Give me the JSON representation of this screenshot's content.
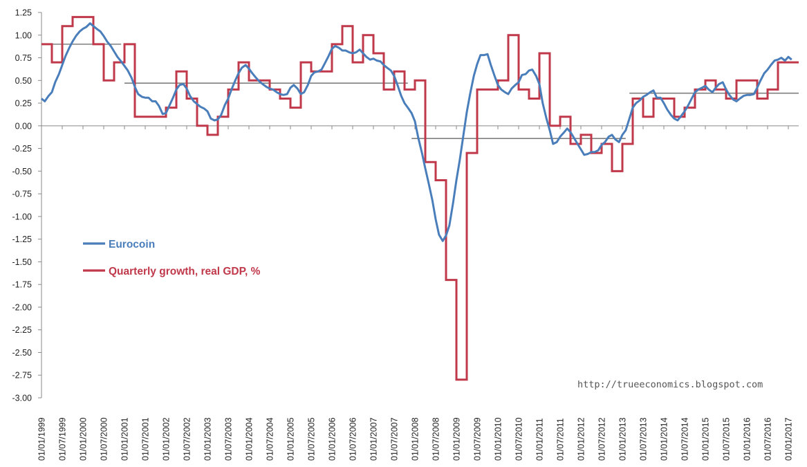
{
  "chart_data": {
    "type": "line",
    "title": "",
    "xlabel": "",
    "ylabel": "",
    "ylim": [
      -3.0,
      1.25
    ],
    "y_ticks": [
      "1.25",
      "1.00",
      "0.75",
      "0.50",
      "0.25",
      "0.00",
      "-0.25",
      "-0.50",
      "-0.75",
      "-1.00",
      "-1.25",
      "-1.50",
      "-1.75",
      "-2.00",
      "-2.25",
      "-2.50",
      "-2.75",
      "-3.00"
    ],
    "x_ticks": [
      "01/01/1999",
      "01/07/1999",
      "01/01/2000",
      "01/07/2000",
      "01/01/2001",
      "01/07/2001",
      "01/01/2002",
      "01/07/2002",
      "01/01/2003",
      "01/07/2003",
      "01/01/2004",
      "01/07/2004",
      "01/01/2005",
      "01/07/2005",
      "01/01/2006",
      "01/07/2006",
      "01/01/2007",
      "01/07/2007",
      "01/01/2008",
      "01/07/2008",
      "01/01/2009",
      "01/07/2009",
      "01/01/2010",
      "01/07/2010",
      "01/01/2011",
      "01/07/2011",
      "01/01/2012",
      "01/07/2012",
      "01/01/2013",
      "01/07/2013",
      "01/01/2014",
      "01/07/2014",
      "01/01/2015",
      "01/07/2015",
      "01/01/2016",
      "01/07/2016",
      "01/01/2017"
    ],
    "x_start": 1999.0,
    "x_end": 2017.25,
    "legend_position": "left-middle",
    "watermark": "http://trueeconomics.blogspot.com",
    "series": [
      {
        "name": "Eurocoin",
        "color": "#4a7ebb",
        "points": [
          [
            1999.0,
            0.3
          ],
          [
            1999.08,
            0.27
          ],
          [
            1999.17,
            0.33
          ],
          [
            1999.25,
            0.37
          ],
          [
            1999.33,
            0.48
          ],
          [
            1999.42,
            0.57
          ],
          [
            1999.5,
            0.67
          ],
          [
            1999.58,
            0.77
          ],
          [
            1999.67,
            0.86
          ],
          [
            1999.75,
            0.93
          ],
          [
            1999.83,
            0.99
          ],
          [
            1999.92,
            1.04
          ],
          [
            2000.0,
            1.07
          ],
          [
            2000.08,
            1.09
          ],
          [
            2000.17,
            1.13
          ],
          [
            2000.25,
            1.1
          ],
          [
            2000.33,
            1.07
          ],
          [
            2000.42,
            1.04
          ],
          [
            2000.5,
            0.99
          ],
          [
            2000.58,
            0.93
          ],
          [
            2000.67,
            0.88
          ],
          [
            2000.75,
            0.82
          ],
          [
            2000.83,
            0.76
          ],
          [
            2000.92,
            0.71
          ],
          [
            2001.0,
            0.66
          ],
          [
            2001.08,
            0.61
          ],
          [
            2001.17,
            0.53
          ],
          [
            2001.25,
            0.43
          ],
          [
            2001.33,
            0.35
          ],
          [
            2001.42,
            0.32
          ],
          [
            2001.5,
            0.31
          ],
          [
            2001.58,
            0.31
          ],
          [
            2001.67,
            0.27
          ],
          [
            2001.75,
            0.27
          ],
          [
            2001.83,
            0.22
          ],
          [
            2001.92,
            0.13
          ],
          [
            2002.0,
            0.14
          ],
          [
            2002.08,
            0.22
          ],
          [
            2002.17,
            0.31
          ],
          [
            2002.25,
            0.4
          ],
          [
            2002.33,
            0.45
          ],
          [
            2002.42,
            0.46
          ],
          [
            2002.5,
            0.41
          ],
          [
            2002.58,
            0.33
          ],
          [
            2002.67,
            0.27
          ],
          [
            2002.75,
            0.24
          ],
          [
            2002.83,
            0.21
          ],
          [
            2002.92,
            0.19
          ],
          [
            2003.0,
            0.16
          ],
          [
            2003.08,
            0.08
          ],
          [
            2003.17,
            0.06
          ],
          [
            2003.25,
            0.07
          ],
          [
            2003.33,
            0.12
          ],
          [
            2003.42,
            0.23
          ],
          [
            2003.5,
            0.3
          ],
          [
            2003.58,
            0.4
          ],
          [
            2003.67,
            0.5
          ],
          [
            2003.75,
            0.58
          ],
          [
            2003.83,
            0.64
          ],
          [
            2003.92,
            0.67
          ],
          [
            2004.0,
            0.63
          ],
          [
            2004.08,
            0.58
          ],
          [
            2004.17,
            0.53
          ],
          [
            2004.25,
            0.49
          ],
          [
            2004.33,
            0.46
          ],
          [
            2004.42,
            0.43
          ],
          [
            2004.5,
            0.41
          ],
          [
            2004.58,
            0.4
          ],
          [
            2004.67,
            0.37
          ],
          [
            2004.75,
            0.35
          ],
          [
            2004.83,
            0.34
          ],
          [
            2004.92,
            0.35
          ],
          [
            2005.0,
            0.42
          ],
          [
            2005.08,
            0.45
          ],
          [
            2005.17,
            0.41
          ],
          [
            2005.25,
            0.35
          ],
          [
            2005.33,
            0.37
          ],
          [
            2005.42,
            0.45
          ],
          [
            2005.5,
            0.55
          ],
          [
            2005.58,
            0.59
          ],
          [
            2005.67,
            0.6
          ],
          [
            2005.75,
            0.62
          ],
          [
            2005.83,
            0.69
          ],
          [
            2005.92,
            0.77
          ],
          [
            2006.0,
            0.85
          ],
          [
            2006.08,
            0.88
          ],
          [
            2006.17,
            0.86
          ],
          [
            2006.25,
            0.83
          ],
          [
            2006.33,
            0.83
          ],
          [
            2006.42,
            0.81
          ],
          [
            2006.5,
            0.8
          ],
          [
            2006.58,
            0.81
          ],
          [
            2006.67,
            0.84
          ],
          [
            2006.75,
            0.8
          ],
          [
            2006.83,
            0.76
          ],
          [
            2006.92,
            0.73
          ],
          [
            2007.0,
            0.74
          ],
          [
            2007.08,
            0.72
          ],
          [
            2007.17,
            0.71
          ],
          [
            2007.25,
            0.67
          ],
          [
            2007.33,
            0.64
          ],
          [
            2007.42,
            0.61
          ],
          [
            2007.5,
            0.55
          ],
          [
            2007.58,
            0.45
          ],
          [
            2007.67,
            0.33
          ],
          [
            2007.75,
            0.25
          ],
          [
            2007.83,
            0.2
          ],
          [
            2007.92,
            0.14
          ],
          [
            2008.0,
            0.05
          ],
          [
            2008.08,
            -0.13
          ],
          [
            2008.17,
            -0.3
          ],
          [
            2008.25,
            -0.47
          ],
          [
            2008.33,
            -0.63
          ],
          [
            2008.42,
            -0.82
          ],
          [
            2008.5,
            -1.03
          ],
          [
            2008.58,
            -1.2
          ],
          [
            2008.67,
            -1.27
          ],
          [
            2008.75,
            -1.21
          ],
          [
            2008.83,
            -1.1
          ],
          [
            2008.92,
            -0.85
          ],
          [
            2009.0,
            -0.6
          ],
          [
            2009.08,
            -0.38
          ],
          [
            2009.17,
            -0.1
          ],
          [
            2009.25,
            0.15
          ],
          [
            2009.33,
            0.35
          ],
          [
            2009.42,
            0.55
          ],
          [
            2009.5,
            0.68
          ],
          [
            2009.58,
            0.78
          ],
          [
            2009.67,
            0.78
          ],
          [
            2009.75,
            0.79
          ],
          [
            2009.83,
            0.67
          ],
          [
            2009.92,
            0.55
          ],
          [
            2010.0,
            0.45
          ],
          [
            2010.08,
            0.4
          ],
          [
            2010.17,
            0.37
          ],
          [
            2010.25,
            0.35
          ],
          [
            2010.33,
            0.41
          ],
          [
            2010.42,
            0.45
          ],
          [
            2010.5,
            0.48
          ],
          [
            2010.58,
            0.56
          ],
          [
            2010.67,
            0.57
          ],
          [
            2010.75,
            0.61
          ],
          [
            2010.83,
            0.62
          ],
          [
            2010.92,
            0.55
          ],
          [
            2011.0,
            0.46
          ],
          [
            2011.08,
            0.25
          ],
          [
            2011.17,
            0.08
          ],
          [
            2011.25,
            -0.05
          ],
          [
            2011.33,
            -0.2
          ],
          [
            2011.42,
            -0.18
          ],
          [
            2011.5,
            -0.12
          ],
          [
            2011.58,
            -0.08
          ],
          [
            2011.67,
            -0.03
          ],
          [
            2011.75,
            -0.07
          ],
          [
            2011.83,
            -0.13
          ],
          [
            2011.92,
            -0.2
          ],
          [
            2012.0,
            -0.26
          ],
          [
            2012.08,
            -0.32
          ],
          [
            2012.17,
            -0.31
          ],
          [
            2012.25,
            -0.29
          ],
          [
            2012.33,
            -0.29
          ],
          [
            2012.42,
            -0.27
          ],
          [
            2012.5,
            -0.21
          ],
          [
            2012.58,
            -0.18
          ],
          [
            2012.67,
            -0.12
          ],
          [
            2012.75,
            -0.1
          ],
          [
            2012.83,
            -0.15
          ],
          [
            2012.92,
            -0.18
          ],
          [
            2013.0,
            -0.1
          ],
          [
            2013.08,
            -0.05
          ],
          [
            2013.17,
            0.08
          ],
          [
            2013.25,
            0.2
          ],
          [
            2013.33,
            0.25
          ],
          [
            2013.42,
            0.28
          ],
          [
            2013.5,
            0.32
          ],
          [
            2013.58,
            0.34
          ],
          [
            2013.67,
            0.37
          ],
          [
            2013.75,
            0.39
          ],
          [
            2013.83,
            0.31
          ],
          [
            2013.92,
            0.31
          ],
          [
            2014.0,
            0.25
          ],
          [
            2014.08,
            0.18
          ],
          [
            2014.17,
            0.12
          ],
          [
            2014.25,
            0.08
          ],
          [
            2014.33,
            0.06
          ],
          [
            2014.42,
            0.11
          ],
          [
            2014.5,
            0.16
          ],
          [
            2014.58,
            0.22
          ],
          [
            2014.67,
            0.3
          ],
          [
            2014.75,
            0.37
          ],
          [
            2014.83,
            0.4
          ],
          [
            2014.92,
            0.42
          ],
          [
            2015.0,
            0.44
          ],
          [
            2015.08,
            0.4
          ],
          [
            2015.17,
            0.37
          ],
          [
            2015.25,
            0.42
          ],
          [
            2015.33,
            0.46
          ],
          [
            2015.42,
            0.48
          ],
          [
            2015.5,
            0.4
          ],
          [
            2015.58,
            0.34
          ],
          [
            2015.67,
            0.29
          ],
          [
            2015.75,
            0.27
          ],
          [
            2015.83,
            0.3
          ],
          [
            2015.92,
            0.33
          ],
          [
            2016.0,
            0.34
          ],
          [
            2016.08,
            0.34
          ],
          [
            2016.17,
            0.35
          ],
          [
            2016.25,
            0.42
          ],
          [
            2016.33,
            0.5
          ],
          [
            2016.42,
            0.58
          ],
          [
            2016.5,
            0.62
          ],
          [
            2016.58,
            0.67
          ],
          [
            2016.67,
            0.72
          ],
          [
            2016.75,
            0.73
          ],
          [
            2016.83,
            0.75
          ],
          [
            2016.92,
            0.72
          ],
          [
            2017.0,
            0.76
          ],
          [
            2017.08,
            0.73
          ]
        ]
      },
      {
        "name": "Quarterly growth, real GDP, %",
        "color": "#c0394b",
        "quarter_starts": [
          1999.0,
          1999.25,
          1999.5,
          1999.75,
          2000.0,
          2000.25,
          2000.5,
          2000.75,
          2001.0,
          2001.25,
          2001.5,
          2001.75,
          2002.0,
          2002.25,
          2002.5,
          2002.75,
          2003.0,
          2003.25,
          2003.5,
          2003.75,
          2004.0,
          2004.25,
          2004.5,
          2004.75,
          2005.0,
          2005.25,
          2005.5,
          2005.75,
          2006.0,
          2006.25,
          2006.5,
          2006.75,
          2007.0,
          2007.25,
          2007.5,
          2007.75,
          2008.0,
          2008.25,
          2008.5,
          2008.75,
          2009.0,
          2009.25,
          2009.5,
          2009.75,
          2010.0,
          2010.25,
          2010.5,
          2010.75,
          2011.0,
          2011.25,
          2011.5,
          2011.75,
          2012.0,
          2012.25,
          2012.5,
          2012.75,
          2013.0,
          2013.25,
          2013.5,
          2013.75,
          2014.0,
          2014.25,
          2014.5,
          2014.75,
          2015.0,
          2015.25,
          2015.5,
          2015.75,
          2016.0,
          2016.25,
          2016.5,
          2016.75,
          2017.0
        ],
        "values": [
          0.9,
          0.7,
          1.1,
          1.2,
          1.2,
          0.9,
          0.5,
          0.7,
          0.9,
          0.1,
          0.1,
          0.1,
          0.2,
          0.6,
          0.3,
          0.0,
          -0.1,
          0.1,
          0.4,
          0.7,
          0.5,
          0.5,
          0.4,
          0.3,
          0.2,
          0.7,
          0.6,
          0.6,
          0.9,
          1.1,
          0.7,
          1.0,
          0.8,
          0.4,
          0.6,
          0.4,
          0.5,
          -0.4,
          -0.6,
          -1.7,
          -2.8,
          -0.3,
          0.4,
          0.4,
          0.5,
          1.0,
          0.4,
          0.3,
          0.8,
          0.0,
          0.1,
          -0.2,
          -0.1,
          -0.3,
          -0.2,
          -0.5,
          -0.2,
          0.3,
          0.1,
          0.3,
          0.3,
          0.1,
          0.2,
          0.4,
          0.5,
          0.4,
          0.3,
          0.5,
          0.5,
          0.3,
          0.4,
          0.7,
          0.7
        ]
      }
    ],
    "averages": [
      {
        "name": "avg-1999-2000",
        "x0": 1999.0,
        "x1": 2000.92,
        "y": 0.9
      },
      {
        "name": "avg-2001-2007",
        "x0": 2001.0,
        "x1": 2007.83,
        "y": 0.47
      },
      {
        "name": "avg-2008-2012",
        "x0": 2007.92,
        "x1": 2013.08,
        "y": -0.14
      },
      {
        "name": "avg-2013-2017",
        "x0": 2013.17,
        "x1": 2017.25,
        "y": 0.36
      }
    ]
  }
}
